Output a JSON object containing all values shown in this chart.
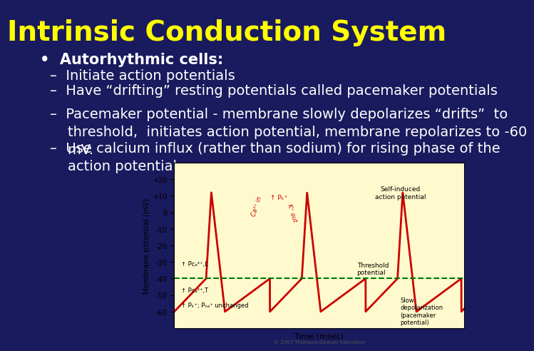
{
  "title": "Intrinsic Conduction System",
  "title_color": "#FFFF00",
  "title_fontsize": 28,
  "title_fontstyle": "bold",
  "background_color": "#1a1a5e",
  "bullet_color": "#FFFFFF",
  "bullet_fontsize": 15,
  "sub_bullet_fontsize": 14,
  "bullet_text": "Autorhythmic cells:",
  "sub_bullets": [
    "Initiate action potentials",
    "Have “drifting” resting potentials called pacemaker potentials",
    "Pacemaker potential - membrane slowly depolarizes “drifts”  to\n    threshold,  initiates action potential, membrane repolarizes to -60\n    mV.",
    "Use calcium influx (rather than sodium) for rising phase of the\n    action potential"
  ],
  "graph_bg": "#FFFACD",
  "graph_line_color": "#CC0000",
  "threshold_color": "#007700",
  "annotation_color_red": "#CC0000",
  "annotation_color_black": "#000000"
}
